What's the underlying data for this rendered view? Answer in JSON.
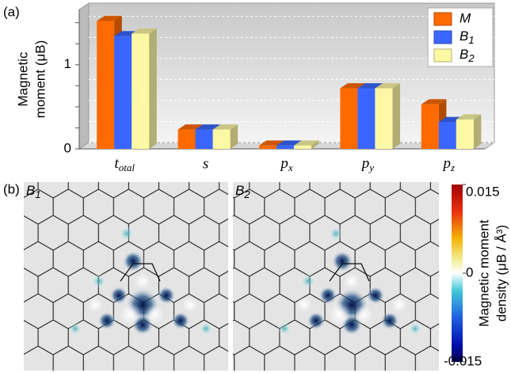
{
  "chart_data": [
    {
      "type": "bar3d",
      "panel_label": "(a)",
      "ylabel_lines": [
        "Magnetic",
        "moment (μB)"
      ],
      "categories": [
        "total",
        "s",
        "px",
        "py",
        "pz"
      ],
      "series": [
        {
          "name": "M",
          "color": "#ff6a00",
          "values": [
            1.52,
            0.23,
            0.04,
            0.72,
            0.53
          ]
        },
        {
          "name": "B1",
          "color": "#3a66ff",
          "values": [
            1.34,
            0.23,
            0.04,
            0.72,
            0.32
          ]
        },
        {
          "name": "B2",
          "color": "#fdf8a4",
          "values": [
            1.37,
            0.23,
            0.04,
            0.72,
            0.35
          ]
        }
      ],
      "ylim": [
        0,
        1.6
      ],
      "yticks": [
        0,
        1
      ],
      "minor_yticks": [
        0.25,
        0.5,
        0.75,
        1.25,
        1.5
      ],
      "grid": true,
      "legend": "upper right"
    },
    {
      "type": "colormap",
      "panel_label": "(b)",
      "images": [
        "B1",
        "B2"
      ],
      "colorbar_label_lines": [
        "Magnetic moment",
        "density (μB / Å³)"
      ],
      "colorbar_lim": [
        -0.015,
        0.015
      ],
      "colorbar_ticks": [
        -0.015,
        0,
        0.015
      ]
    }
  ]
}
